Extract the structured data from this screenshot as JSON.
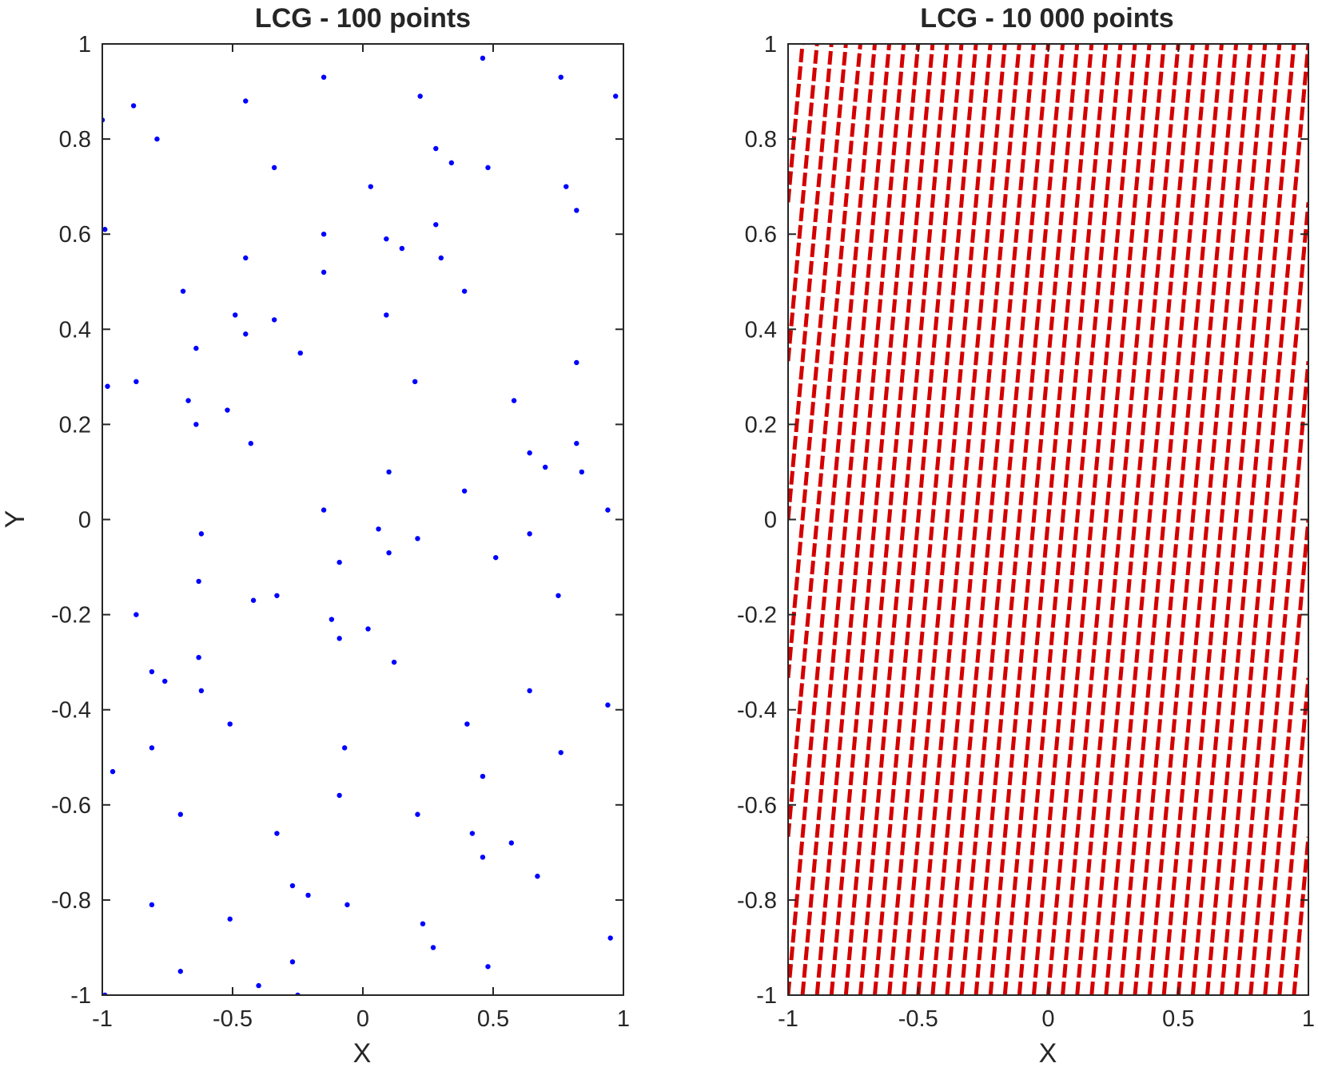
{
  "colors": {
    "left_series": "#0000ff",
    "right_series": "#d40000",
    "axes": "#262626",
    "background": "#ffffff"
  },
  "chart_data": [
    {
      "type": "scatter",
      "title": "LCG - 100 points",
      "xlabel": "X",
      "ylabel": "Y",
      "xlim": [
        -1,
        1
      ],
      "ylim": [
        -1,
        1
      ],
      "xticks": [
        "-1",
        "-0.5",
        "0",
        "0.5",
        "1"
      ],
      "yticks": [
        "-1",
        "-0.8",
        "-0.6",
        "-0.4",
        "-0.2",
        "0",
        "0.2",
        "0.4",
        "0.6",
        "0.8",
        "1"
      ],
      "grid": false,
      "marker": "dot",
      "series": [
        {
          "color": "#0000ff",
          "points": [
            [
              -1.0,
              0.84
            ],
            [
              -0.99,
              0.61
            ],
            [
              -0.98,
              0.28
            ],
            [
              -0.88,
              0.87
            ],
            [
              -0.79,
              0.8
            ],
            [
              -0.87,
              0.29
            ],
            [
              -0.69,
              0.48
            ],
            [
              -0.64,
              0.36
            ],
            [
              -0.67,
              0.25
            ],
            [
              -0.64,
              0.2
            ],
            [
              -0.52,
              0.23
            ],
            [
              -0.49,
              0.43
            ],
            [
              -0.45,
              0.88
            ],
            [
              -0.45,
              0.55
            ],
            [
              -0.45,
              0.39
            ],
            [
              -0.43,
              0.16
            ],
            [
              -0.34,
              0.74
            ],
            [
              -0.34,
              0.42
            ],
            [
              -0.24,
              0.35
            ],
            [
              -0.15,
              0.93
            ],
            [
              -0.15,
              0.6
            ],
            [
              -0.15,
              0.52
            ],
            [
              -0.15,
              0.02
            ],
            [
              0.03,
              0.7
            ],
            [
              0.09,
              0.59
            ],
            [
              0.09,
              0.43
            ],
            [
              0.15,
              0.57
            ],
            [
              0.22,
              0.89
            ],
            [
              0.28,
              0.78
            ],
            [
              0.34,
              0.75
            ],
            [
              0.28,
              0.62
            ],
            [
              0.3,
              0.55
            ],
            [
              0.39,
              0.48
            ],
            [
              0.46,
              0.97
            ],
            [
              0.48,
              0.74
            ],
            [
              0.76,
              0.93
            ],
            [
              0.97,
              0.89
            ],
            [
              0.78,
              0.7
            ],
            [
              0.82,
              0.65
            ],
            [
              0.82,
              0.33
            ],
            [
              0.58,
              0.25
            ],
            [
              0.2,
              0.29
            ],
            [
              0.1,
              0.1
            ],
            [
              0.39,
              0.06
            ],
            [
              0.64,
              0.14
            ],
            [
              0.7,
              0.11
            ],
            [
              0.82,
              0.16
            ],
            [
              0.84,
              0.1
            ],
            [
              0.94,
              0.02
            ],
            [
              -0.62,
              -0.03
            ],
            [
              0.06,
              -0.02
            ],
            [
              0.21,
              -0.04
            ],
            [
              0.1,
              -0.07
            ],
            [
              -0.09,
              -0.09
            ],
            [
              0.51,
              -0.08
            ],
            [
              0.64,
              -0.03
            ],
            [
              -0.63,
              -0.13
            ],
            [
              -0.42,
              -0.17
            ],
            [
              -0.33,
              -0.16
            ],
            [
              -0.87,
              -0.2
            ],
            [
              -0.12,
              -0.21
            ],
            [
              -0.09,
              -0.25
            ],
            [
              0.02,
              -0.23
            ],
            [
              0.75,
              -0.16
            ],
            [
              0.12,
              -0.3
            ],
            [
              -0.63,
              -0.29
            ],
            [
              -0.81,
              -0.32
            ],
            [
              -0.76,
              -0.34
            ],
            [
              -0.62,
              -0.36
            ],
            [
              0.64,
              -0.36
            ],
            [
              -0.51,
              -0.43
            ],
            [
              0.4,
              -0.43
            ],
            [
              0.94,
              -0.39
            ],
            [
              -0.81,
              -0.48
            ],
            [
              -0.07,
              -0.48
            ],
            [
              0.76,
              -0.49
            ],
            [
              -0.96,
              -0.53
            ],
            [
              0.46,
              -0.54
            ],
            [
              -0.09,
              -0.58
            ],
            [
              -0.7,
              -0.62
            ],
            [
              0.21,
              -0.62
            ],
            [
              -0.33,
              -0.66
            ],
            [
              0.42,
              -0.66
            ],
            [
              0.57,
              -0.68
            ],
            [
              0.46,
              -0.71
            ],
            [
              0.67,
              -0.75
            ],
            [
              -0.27,
              -0.77
            ],
            [
              -0.21,
              -0.79
            ],
            [
              -0.81,
              -0.81
            ],
            [
              -0.06,
              -0.81
            ],
            [
              -0.51,
              -0.84
            ],
            [
              0.23,
              -0.85
            ],
            [
              0.27,
              -0.9
            ],
            [
              0.95,
              -0.88
            ],
            [
              -0.27,
              -0.93
            ],
            [
              -0.7,
              -0.95
            ],
            [
              0.48,
              -0.94
            ],
            [
              -0.4,
              -0.98
            ],
            [
              -0.25,
              -1.0
            ],
            [
              -0.99,
              -1.0
            ]
          ]
        }
      ]
    },
    {
      "type": "scatter",
      "title": "LCG - 10 000 points",
      "xlabel": "X",
      "ylabel": "",
      "xlim": [
        -1,
        1
      ],
      "ylim": [
        -1,
        1
      ],
      "xticks": [
        "-1",
        "-0.5",
        "0",
        "0.5",
        "1"
      ],
      "yticks": [
        "-1",
        "-0.8",
        "-0.6",
        "-0.4",
        "-0.2",
        "0",
        "0.2",
        "0.4",
        "0.6",
        "0.8",
        "1"
      ],
      "grid": false,
      "marker": "dot",
      "pattern": "points fall on parallel lines y = 6x + c (lattice structure)",
      "line_slope": 6,
      "line_intercepts": [
        -7,
        -6.667,
        -6.333,
        -6,
        -5.667,
        -5.333,
        -5,
        -4.667,
        -4.333,
        -4,
        -3.667,
        -3.333,
        -3,
        -2.667,
        -2.333,
        -2,
        -1.667,
        -1.333,
        -1,
        -0.667,
        -0.333,
        0,
        0.333,
        0.667,
        1,
        1.333,
        1.667,
        2,
        2.333,
        2.667,
        3,
        3.333,
        3.667,
        4,
        4.333,
        4.667,
        5,
        5.333,
        5.667,
        6,
        6.333,
        6.667,
        7
      ],
      "series": [
        {
          "color": "#d40000",
          "count": 10000
        }
      ]
    }
  ]
}
